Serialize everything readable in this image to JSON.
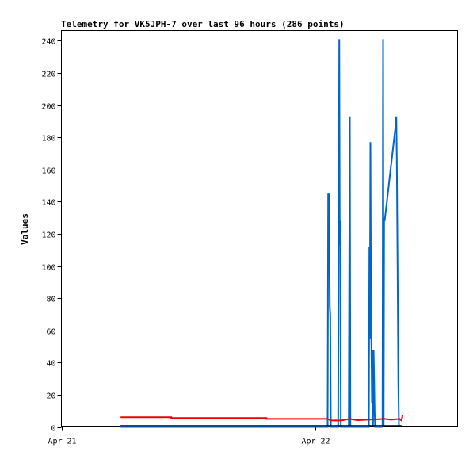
{
  "chart_data": {
    "type": "line",
    "title": "Telemetry for VK5JPH-7 over last 96 hours (286 points)",
    "xlabel": "",
    "ylabel": "Values",
    "ylim": [
      0,
      255
    ],
    "yticks": [
      0,
      20,
      40,
      60,
      80,
      100,
      120,
      140,
      160,
      180,
      200,
      220,
      240
    ],
    "x_unit": "hours since Apr 21 00:00",
    "xlim": [
      0,
      37.5
    ],
    "xticks": [
      {
        "x": 0,
        "label": "Apr 21"
      },
      {
        "x": 24,
        "label": "Apr 22"
      }
    ],
    "grid": false,
    "series": [
      {
        "color": "#0066cc",
        "points": [
          [
            5.6,
            0
          ],
          [
            25.2,
            0
          ],
          [
            25.25,
            145
          ],
          [
            25.3,
            120
          ],
          [
            25.35,
            145
          ],
          [
            25.4,
            75
          ],
          [
            25.45,
            70
          ],
          [
            25.5,
            0
          ],
          [
            26.2,
            0
          ],
          [
            26.25,
            120
          ],
          [
            26.3,
            241
          ],
          [
            26.35,
            113
          ],
          [
            26.4,
            128
          ],
          [
            26.45,
            0
          ],
          [
            27.2,
            0
          ],
          [
            27.25,
            97
          ],
          [
            27.3,
            193
          ],
          [
            27.35,
            0
          ],
          [
            29.1,
            0
          ],
          [
            29.15,
            112
          ],
          [
            29.2,
            55
          ],
          [
            29.25,
            177
          ],
          [
            29.3,
            80
          ],
          [
            29.35,
            48
          ],
          [
            29.4,
            15
          ],
          [
            29.45,
            48
          ],
          [
            29.5,
            0
          ],
          [
            29.55,
            48
          ],
          [
            29.6,
            30
          ],
          [
            29.65,
            10
          ],
          [
            29.7,
            0
          ],
          [
            30.4,
            0
          ],
          [
            30.45,
            241
          ],
          [
            30.5,
            0
          ],
          [
            30.55,
            130
          ],
          [
            30.6,
            128
          ],
          [
            31.6,
            185
          ],
          [
            31.7,
            193
          ],
          [
            31.75,
            167
          ],
          [
            31.8,
            120
          ],
          [
            31.85,
            70
          ],
          [
            31.9,
            25
          ],
          [
            31.95,
            0
          ]
        ]
      },
      {
        "color": "#ee0000",
        "points": [
          [
            5.6,
            6
          ],
          [
            10.4,
            6
          ],
          [
            10.4,
            5.5
          ],
          [
            19.4,
            5.5
          ],
          [
            19.4,
            5
          ],
          [
            25.2,
            5
          ],
          [
            25.5,
            4
          ],
          [
            26.5,
            4
          ],
          [
            27.3,
            5
          ],
          [
            28.0,
            4.2
          ],
          [
            29.0,
            4.5
          ],
          [
            30.0,
            4.8
          ],
          [
            30.6,
            5
          ],
          [
            31.2,
            4.5
          ],
          [
            32.0,
            5
          ],
          [
            32.2,
            4
          ],
          [
            32.3,
            7.5
          ]
        ]
      },
      {
        "color": "#000000",
        "points": [
          [
            5.6,
            0.6
          ],
          [
            32.2,
            0.6
          ]
        ]
      }
    ]
  }
}
